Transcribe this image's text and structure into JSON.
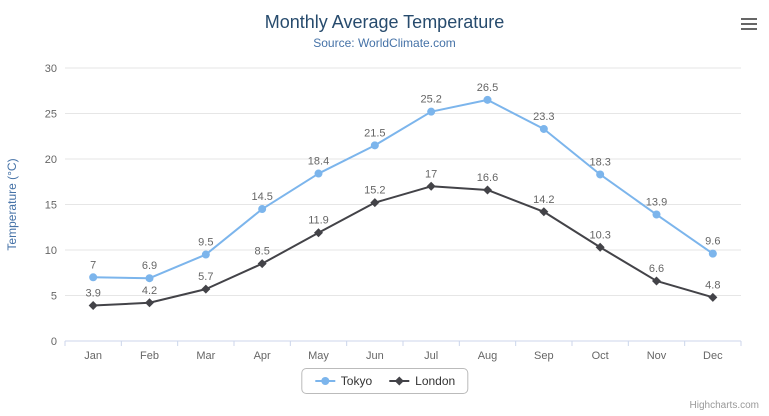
{
  "chart_data": {
    "type": "line",
    "title": "Monthly Average Temperature",
    "subtitle": "Source: WorldClimate.com",
    "categories": [
      "Jan",
      "Feb",
      "Mar",
      "Apr",
      "May",
      "Jun",
      "Jul",
      "Aug",
      "Sep",
      "Oct",
      "Nov",
      "Dec"
    ],
    "series": [
      {
        "name": "Tokyo",
        "color": "#7cb5ec",
        "marker": "circle",
        "values": [
          7,
          6.9,
          9.5,
          14.5,
          18.4,
          21.5,
          25.2,
          26.5,
          23.3,
          18.3,
          13.9,
          9.6
        ]
      },
      {
        "name": "London",
        "color": "#434348",
        "marker": "diamond",
        "values": [
          3.9,
          4.2,
          5.7,
          8.5,
          11.9,
          15.2,
          17,
          16.6,
          14.2,
          10.3,
          6.6,
          4.8
        ]
      }
    ],
    "xlabel": "",
    "ylabel": "Temperature (°C)",
    "ylim": [
      0,
      30
    ],
    "yticks": [
      0,
      5,
      10,
      15,
      20,
      25,
      30
    ],
    "grid": true,
    "legend_position": "bottom"
  },
  "colors": {
    "grid_line": "#e6e6e6",
    "axis_line": "#ccd6eb",
    "axis_label": "#666666",
    "data_label": "#666666",
    "title": "#274b6d",
    "subtitle": "#4572a7",
    "y_axis_title": "#4572a7"
  },
  "menu_icon": "hamburger-icon",
  "credits": "Highcharts.com"
}
